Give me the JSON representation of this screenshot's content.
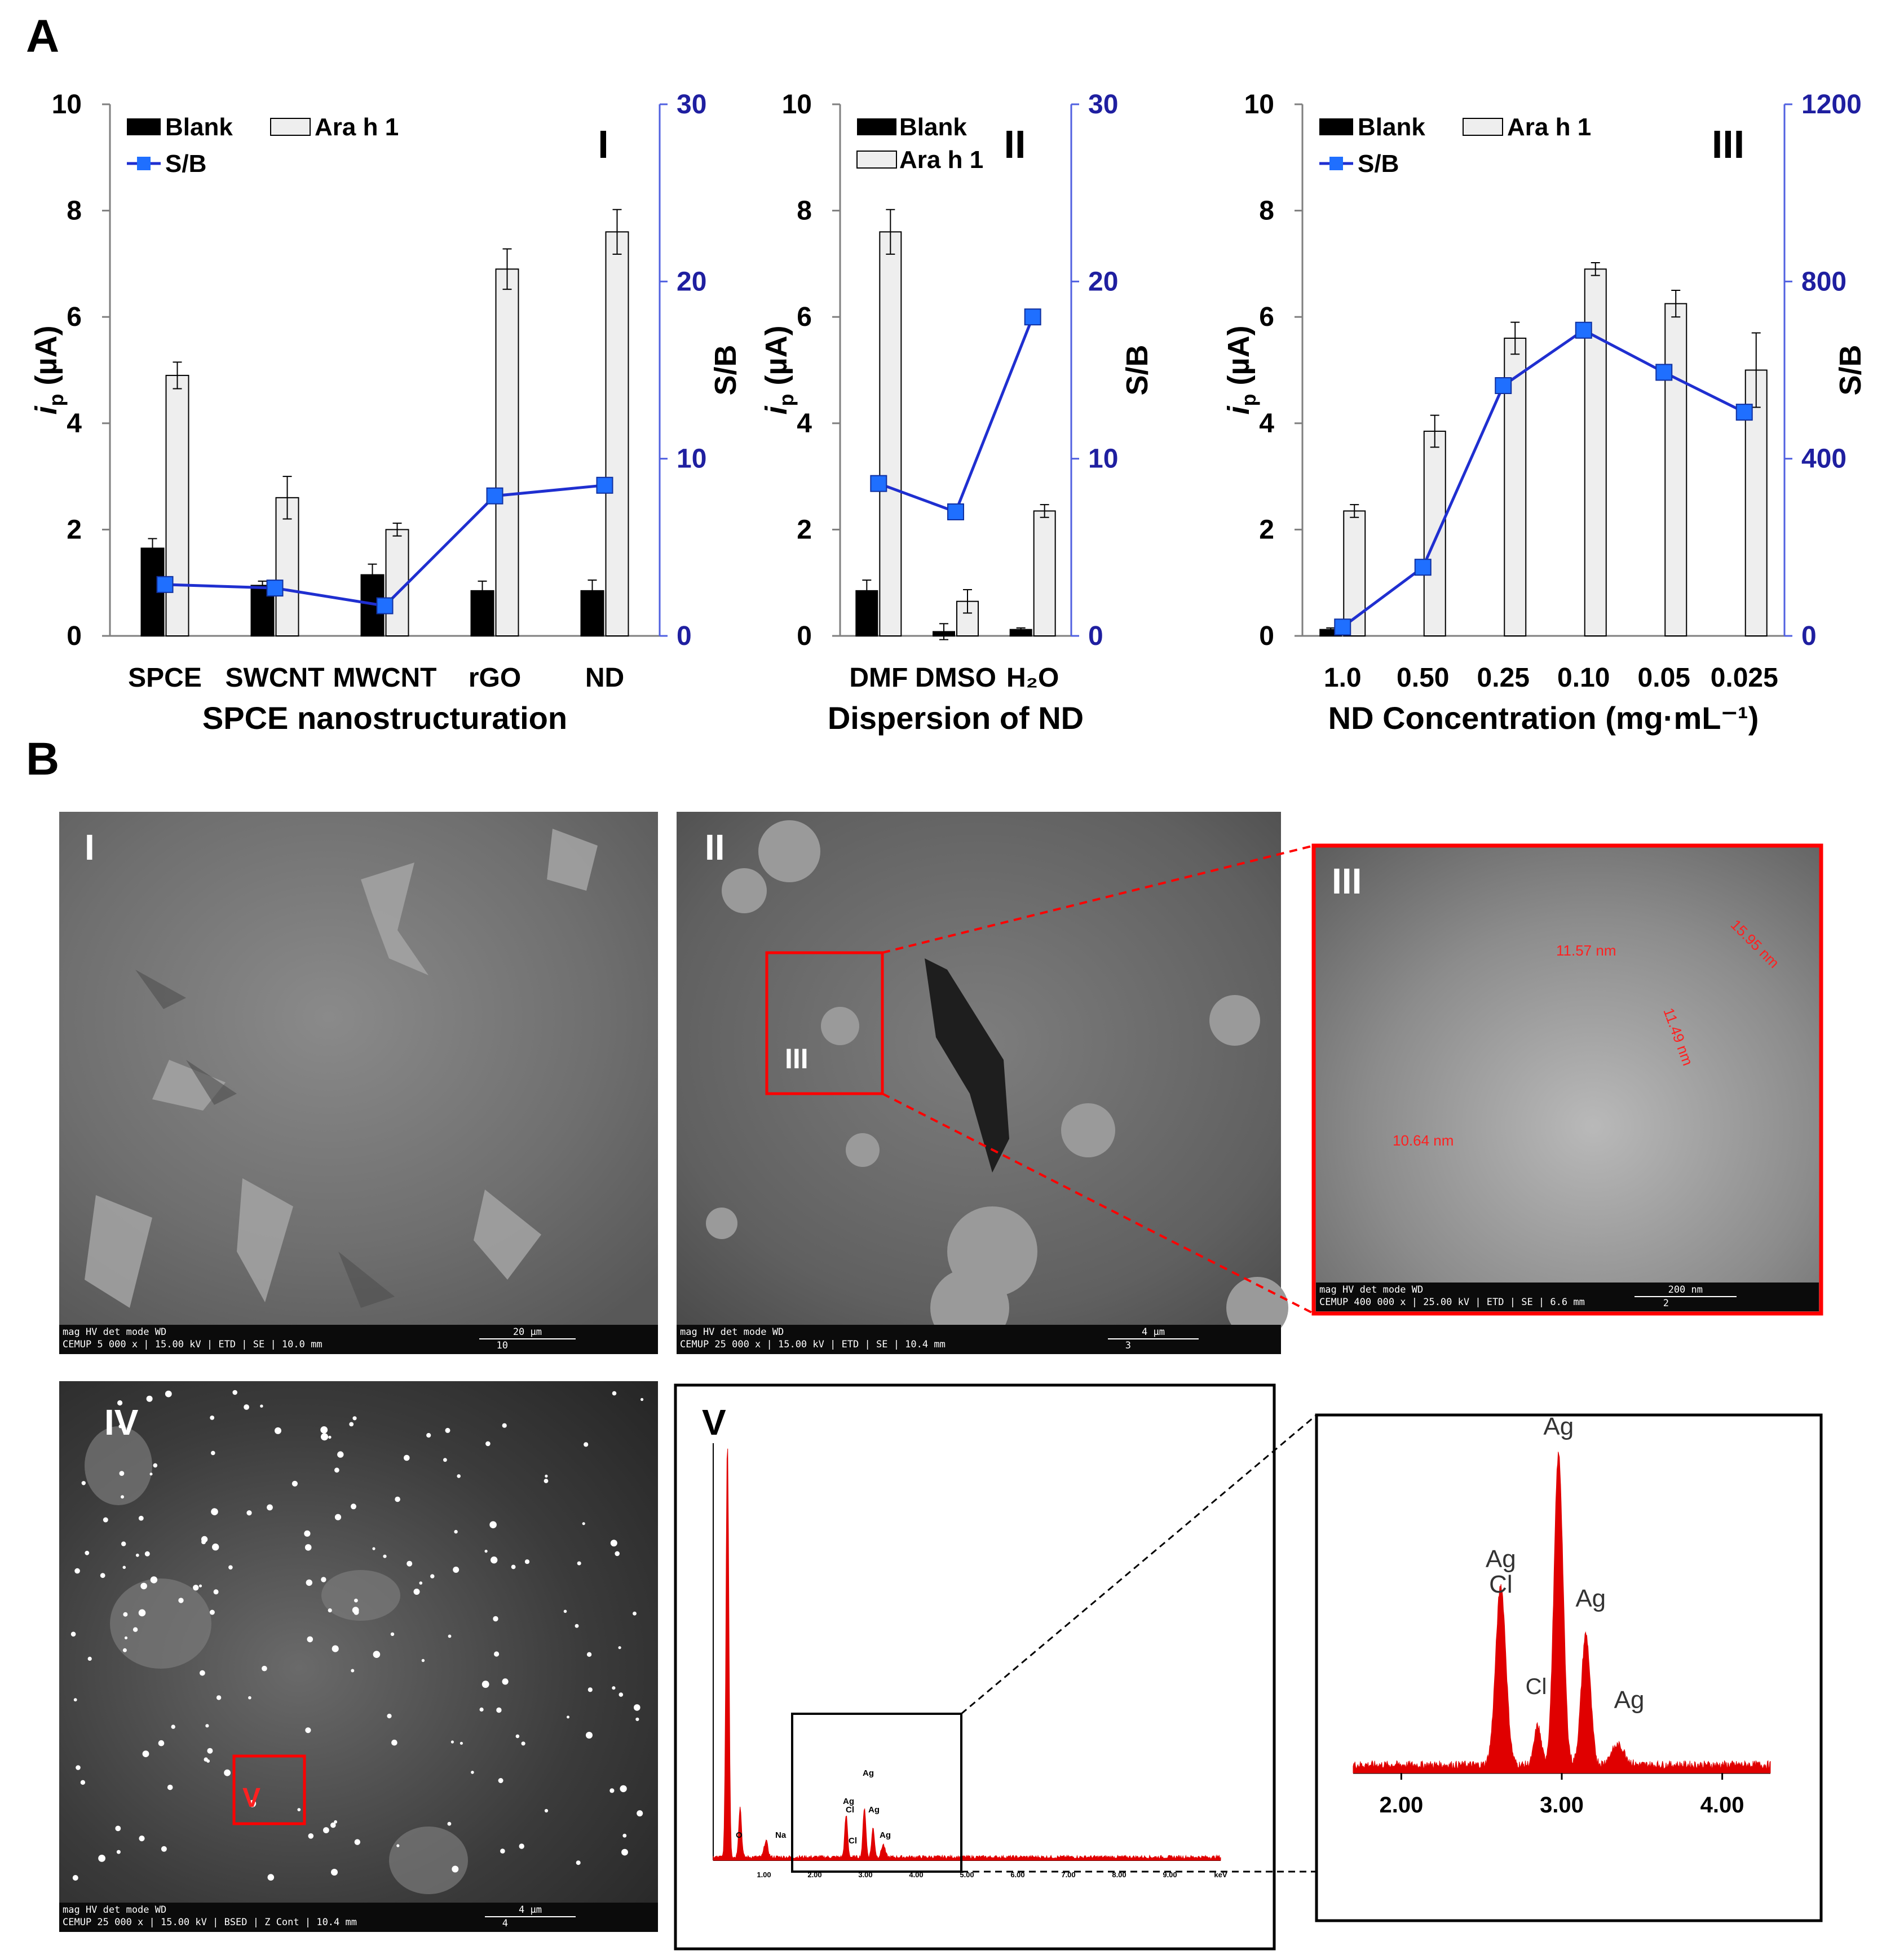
{
  "panel_labels": {
    "A": "A",
    "B": "B"
  },
  "legend": {
    "blank": "Blank",
    "ara": "Ara h 1",
    "sb": "S/B"
  },
  "axis_common": {
    "left_prefix": "i",
    "left_sub": "p",
    "left_suffix": " (µA)",
    "right": "S/B"
  },
  "colors": {
    "line": "#1f2fd0",
    "marker": "#1f6fff",
    "bar_blank": "#000000",
    "bar_ara": "#eeeeee",
    "right_axis": "#1f1fa0",
    "highlight": "#e00000"
  },
  "chart_data": [
    {
      "id": "I",
      "type": "bar",
      "roman": "I",
      "categories": [
        "SPCE",
        "SWCNT",
        "MWCNT",
        "rGO",
        "ND"
      ],
      "xlabel": "SPCE nanostructuration",
      "ylabel": "ip (µA)",
      "ylim": [
        0,
        10
      ],
      "y_ticks": [
        "0",
        "2",
        "4",
        "6",
        "8",
        "10"
      ],
      "y2label": "S/B",
      "y2lim": [
        0,
        30
      ],
      "y2_ticks": [
        "0",
        "10",
        "20",
        "30"
      ],
      "legend_position": "top-left",
      "series": [
        {
          "name": "Blank",
          "values": [
            1.65,
            0.95,
            1.15,
            0.85,
            0.85
          ],
          "errors": [
            0.18,
            0.08,
            0.2,
            0.18,
            0.2
          ]
        },
        {
          "name": "Ara h 1",
          "values": [
            4.9,
            2.6,
            2.0,
            6.9,
            7.6
          ],
          "errors": [
            0.25,
            0.4,
            0.12,
            0.38,
            0.42
          ]
        },
        {
          "name": "S/B",
          "values": [
            2.9,
            2.7,
            1.7,
            7.9,
            8.5
          ]
        }
      ]
    },
    {
      "id": "II",
      "type": "bar",
      "roman": "II",
      "categories": [
        "DMF",
        "DMSO",
        "H₂O"
      ],
      "xlabel": "Dispersion of ND",
      "ylabel": "ip (µA)",
      "ylim": [
        0,
        10
      ],
      "y_ticks": [
        "0",
        "2",
        "4",
        "6",
        "8",
        "10"
      ],
      "y2label": "S/B",
      "y2lim": [
        0,
        30
      ],
      "y2_ticks": [
        "0",
        "10",
        "20",
        "30"
      ],
      "legend_position": "top-left",
      "series": [
        {
          "name": "Blank",
          "values": [
            0.85,
            0.08,
            0.12
          ],
          "errors": [
            0.2,
            0.15,
            0.03
          ]
        },
        {
          "name": "Ara h 1",
          "values": [
            7.6,
            0.65,
            2.35
          ],
          "errors": [
            0.42,
            0.22,
            0.12
          ]
        },
        {
          "name": "S/B",
          "values": [
            8.6,
            7.0,
            18.0
          ]
        }
      ]
    },
    {
      "id": "III",
      "type": "bar",
      "roman": "III",
      "categories": [
        "1.0",
        "0.50",
        "0.25",
        "0.10",
        "0.05",
        "0.025"
      ],
      "xlabel": "ND Concentration (mg·mL⁻¹)",
      "ylabel": "ip (µA)",
      "ylim": [
        0,
        10
      ],
      "y_ticks": [
        "0",
        "2",
        "4",
        "6",
        "8",
        "10"
      ],
      "y2label": "S/B",
      "y2lim": [
        0,
        1200
      ],
      "y2_ticks": [
        "0",
        "400",
        "800",
        "1200"
      ],
      "legend_position": "top-left",
      "series": [
        {
          "name": "Blank",
          "values": [
            0.12,
            0.0,
            0.0,
            0.0,
            0.0,
            0.0
          ],
          "errors": [
            0.03,
            0,
            0,
            0,
            0,
            0
          ]
        },
        {
          "name": "Ara h 1",
          "values": [
            2.35,
            3.85,
            5.6,
            6.9,
            6.25,
            5.0
          ],
          "errors": [
            0.12,
            0.3,
            0.3,
            0.12,
            0.25,
            0.7
          ]
        },
        {
          "name": "S/B",
          "values": [
            20,
            155,
            565,
            690,
            595,
            505
          ]
        }
      ]
    },
    {
      "id": "EDS",
      "type": "line",
      "note_peaks": [
        "Ag",
        "Cl",
        "Ag",
        "Ag",
        "Ag"
      ],
      "x_ticks_inset": [
        "2.00",
        "3.00",
        "4.00"
      ],
      "x_ticks_full": [
        "1.00",
        "2.00",
        "3.00",
        "4.00",
        "5.00",
        "6.00",
        "7.00",
        "8.00",
        "9.00",
        "keV"
      ]
    }
  ],
  "sem": {
    "I": {
      "label": "I",
      "mag": "5 000 x",
      "hv": "15.00 kV",
      "det": "ETD",
      "mode": "SE",
      "wd": "10.0 mm",
      "scale": "20 µm",
      "num": "10"
    },
    "II": {
      "label": "II",
      "mag": "25 000 x",
      "hv": "15.00 kV",
      "det": "ETD",
      "mode": "SE",
      "wd": "10.4 mm",
      "scale": "4 µm",
      "num": "3",
      "roi": "III"
    },
    "III": {
      "label": "III",
      "mag": "400 000 x",
      "hv": "25.00 kV",
      "det": "ETD",
      "mode": "SE",
      "wd": "6.6 mm",
      "scale": "200 nm",
      "num": "2",
      "measures": [
        "11.57 nm",
        "15.95 nm",
        "11.49 nm",
        "10.64 nm"
      ]
    },
    "IV": {
      "label": "IV",
      "mag": "25 000 x",
      "hv": "15.00 kV",
      "det": "BSED",
      "mode": "Z Cont",
      "wd": "10.4 mm",
      "scale": "4 µm",
      "num": "4",
      "roi": "V"
    },
    "V": {
      "label": "V"
    },
    "bar_heads": {
      "mag": "mag",
      "hv": "HV",
      "det": "det",
      "mode": "mode",
      "wd": "WD",
      "brand": "CEMUP"
    }
  },
  "eds": {
    "peak_labels": {
      "ag_top": "Ag",
      "ag_cl": "Ag",
      "cl_under": "Cl",
      "ag_right": "Ag",
      "cl_small": "Cl",
      "ag_far": "Ag"
    },
    "small_labels": [
      "O",
      "Na",
      "Ag",
      "Cl",
      "Ag",
      "Ag",
      "Ag",
      "Cl"
    ]
  }
}
